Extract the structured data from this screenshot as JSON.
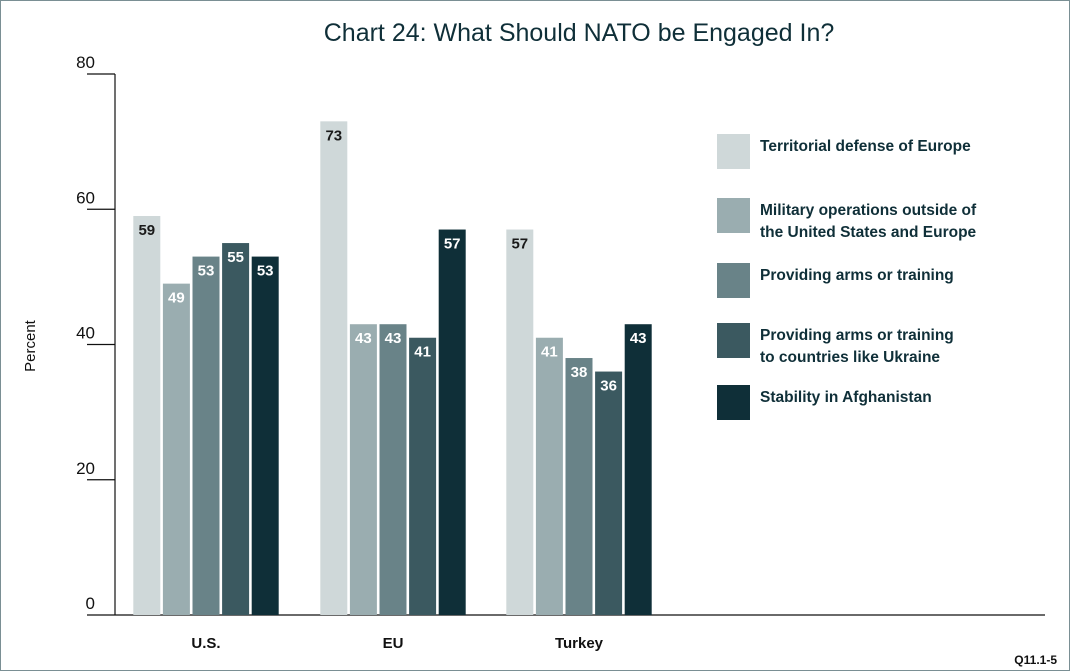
{
  "chart_data": {
    "type": "bar",
    "title": "Chart 24: What Should NATO be Engaged In?",
    "ylabel": "Percent",
    "xlabel": "",
    "ylim": [
      0,
      80
    ],
    "yticks": [
      0,
      20,
      40,
      60,
      80
    ],
    "categories": [
      "U.S.",
      "EU",
      "Turkey"
    ],
    "series": [
      {
        "name": "Territorial defense of Europe",
        "values": [
          59,
          73,
          57
        ],
        "color": "#cfd8d9"
      },
      {
        "name": "Military operations outside of the United States and Europe",
        "values": [
          49,
          43,
          41
        ],
        "color": "#9aadb0"
      },
      {
        "name": "Providing arms or training",
        "values": [
          53,
          43,
          38
        ],
        "color": "#698388"
      },
      {
        "name": "Providing arms or training to countries like Ukraine",
        "values": [
          55,
          41,
          36
        ],
        "color": "#3b5960"
      },
      {
        "name": "Stability in Afghanistan",
        "values": [
          53,
          57,
          43
        ],
        "color": "#0f2f38"
      }
    ],
    "legend_lines": [
      [
        "Territorial defense of Europe"
      ],
      [
        "Military operations outside of",
        "the United States and Europe"
      ],
      [
        "Providing arms or training"
      ],
      [
        "Providing arms or training",
        "to countries like Ukraine"
      ],
      [
        "Stability in Afghanistan"
      ]
    ],
    "legend_position": "right",
    "grid": false,
    "note": "Q11.1-5"
  }
}
